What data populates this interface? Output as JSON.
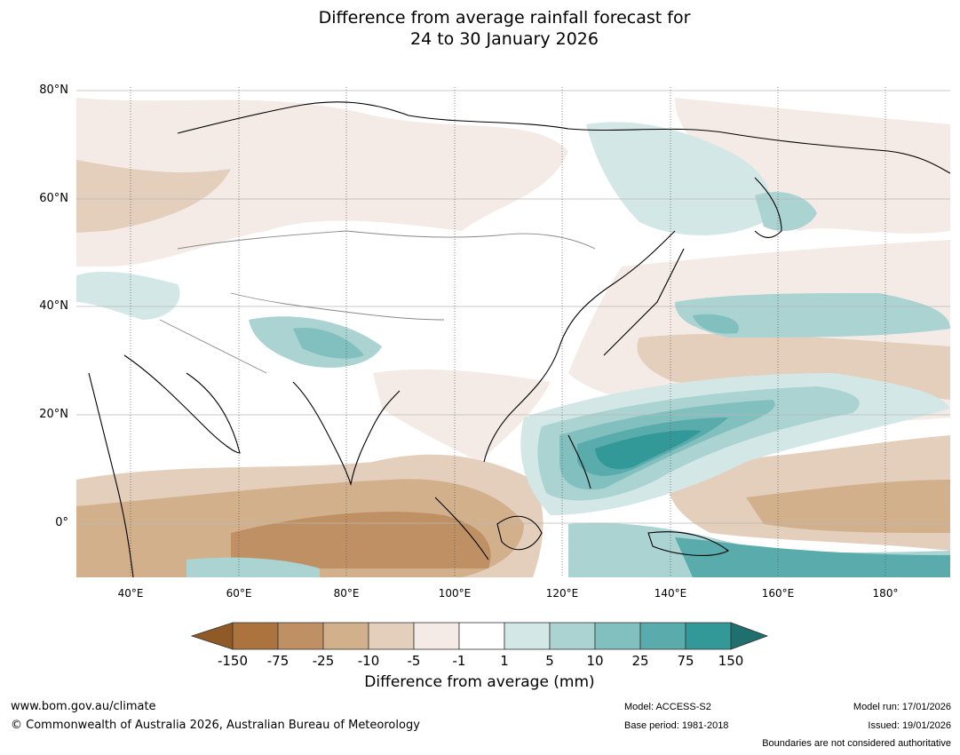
{
  "title": {
    "line1": "Difference from average rainfall forecast for",
    "line2": "24 to 30 January 2026"
  },
  "map": {
    "lat_labels": [
      "80°N",
      "60°N",
      "40°N",
      "20°N",
      "0°"
    ],
    "lat_values": [
      80,
      60,
      40,
      20,
      0
    ],
    "lon_labels": [
      "40°E",
      "60°E",
      "80°E",
      "100°E",
      "120°E",
      "140°E",
      "160°E",
      "180°"
    ],
    "lon_values": [
      40,
      60,
      80,
      100,
      120,
      140,
      160,
      180
    ],
    "lon_range": [
      30,
      192
    ],
    "lat_range": [
      -10,
      81
    ]
  },
  "legend": {
    "title": "Difference from average (mm)",
    "tick_labels": [
      "-150",
      "-75",
      "-25",
      "-10",
      "-5",
      "-1",
      "1",
      "5",
      "10",
      "25",
      "75",
      "150"
    ],
    "colors": {
      "below_min": "#8f5a26",
      "bins": [
        "#ad733e",
        "#bf9063",
        "#d2b08c",
        "#e3cfbc",
        "#f4ebe6",
        "#ffffff",
        "#d3e7e6",
        "#aad3d2",
        "#82c0bf",
        "#5aacac",
        "#339998"
      ],
      "above_max": "#1f6f6e"
    }
  },
  "footer": {
    "url": "www.bom.gov.au/climate",
    "copyright": "© Commonwealth of Australia 2026, Australian Bureau of Meteorology",
    "model": "Model: ACCESS-S2",
    "base_period": "Base period: 1981-2018",
    "model_run": "Model run: 17/01/2026",
    "issued": "Issued: 19/01/2026",
    "disclaimer": "Boundaries are not considered authoritative"
  }
}
